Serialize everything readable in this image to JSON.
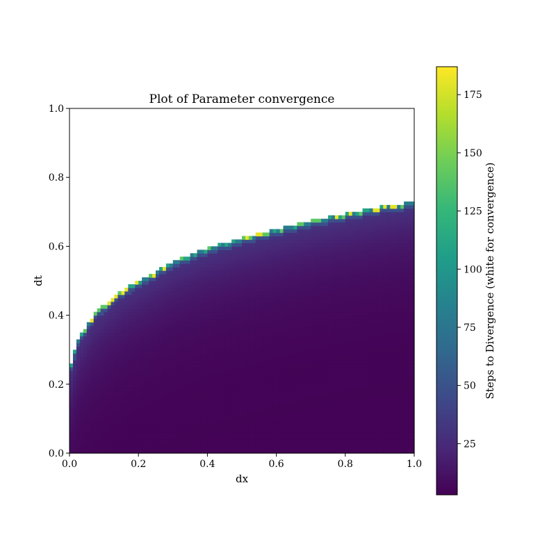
{
  "chart_data": {
    "type": "heatmap",
    "title": "Plot of Parameter convergence",
    "xlabel": "dx",
    "ylabel": "dt",
    "xlim": [
      0.0,
      1.0
    ],
    "ylim": [
      0.0,
      1.0
    ],
    "x_ticks": [
      "0.0",
      "0.2",
      "0.4",
      "0.6",
      "0.8",
      "1.0"
    ],
    "y_ticks": [
      "0.0",
      "0.2",
      "0.4",
      "0.6",
      "0.8",
      "1.0"
    ],
    "x_tick_values": [
      0.0,
      0.2,
      0.4,
      0.6,
      0.8,
      1.0
    ],
    "y_tick_values": [
      0.0,
      0.2,
      0.4,
      0.6,
      0.8,
      1.0
    ],
    "colormap": "viridis",
    "grid_resolution": 100,
    "convergence_color": "#ffffff",
    "boundary_dt_at_dx": {
      "dx": [
        0.0,
        0.01,
        0.02,
        0.03,
        0.05,
        0.07,
        0.1,
        0.15,
        0.2,
        0.3,
        0.4,
        0.5,
        0.6,
        0.7,
        0.8,
        0.9,
        1.0
      ],
      "dt": [
        0.23,
        0.28,
        0.31,
        0.34,
        0.37,
        0.4,
        0.43,
        0.47,
        0.5,
        0.555,
        0.595,
        0.625,
        0.65,
        0.675,
        0.695,
        0.715,
        0.73
      ]
    },
    "colorbar": {
      "label": "Steps to Divergence (white for convergence)",
      "range": [
        3,
        187
      ],
      "ticks": [
        "25",
        "50",
        "75",
        "100",
        "125",
        "150",
        "175"
      ],
      "tick_values": [
        25,
        50,
        75,
        100,
        125,
        150,
        175
      ]
    }
  }
}
